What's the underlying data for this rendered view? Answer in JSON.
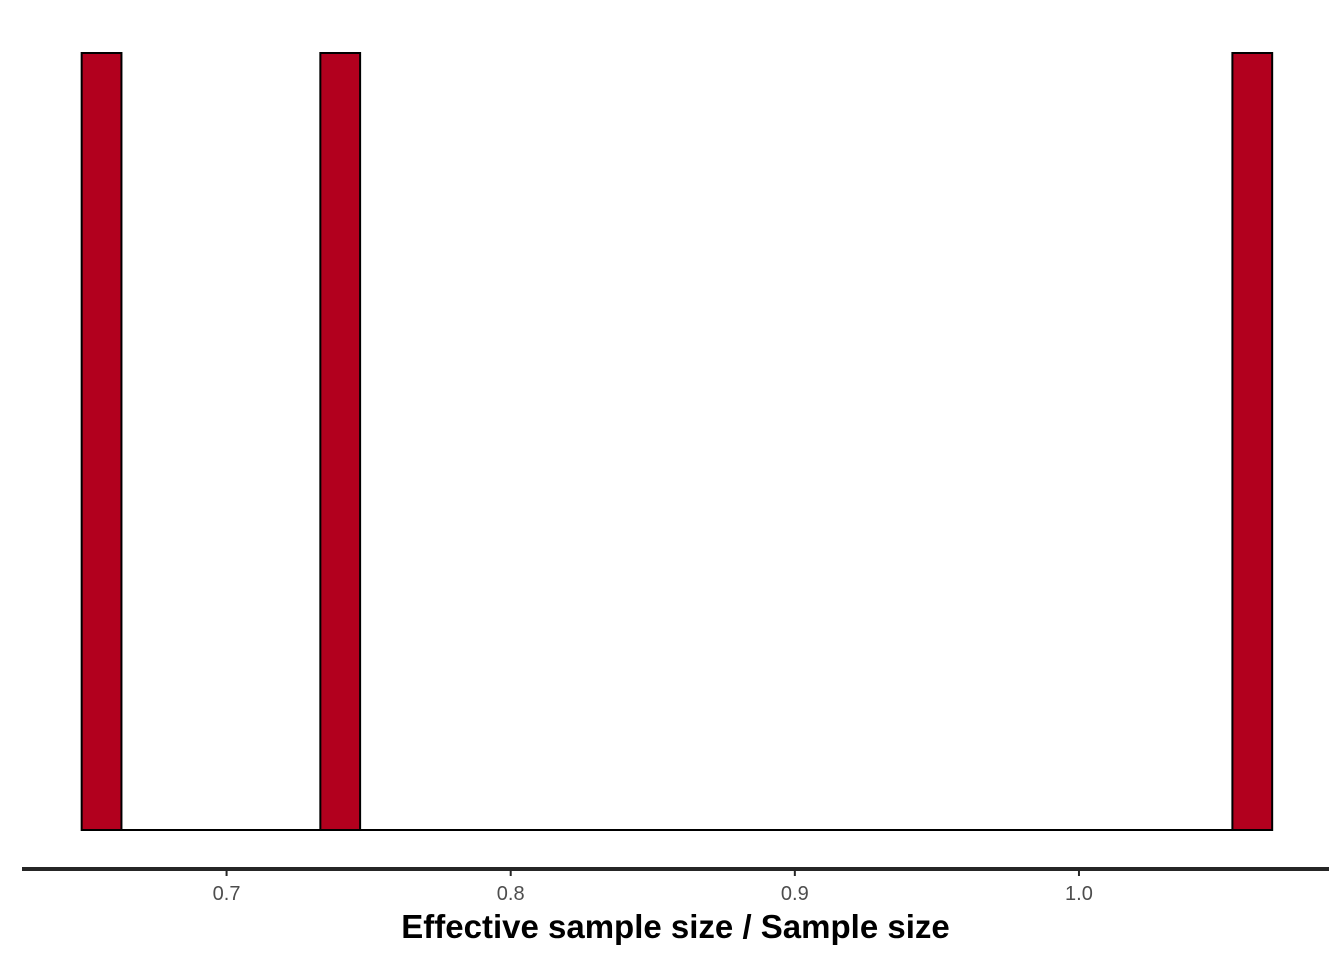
{
  "chart_data": {
    "type": "bar",
    "subtype": "histogram",
    "xlabel": "Effective sample size / Sample size",
    "ylabel": "",
    "title": "",
    "xlim": [
      0.628,
      1.088
    ],
    "x_ticks": [
      0.7,
      0.8,
      0.9,
      1.0
    ],
    "x_tick_labels": [
      "0.7",
      "0.8",
      "0.9",
      "1.0"
    ],
    "bin_width": 0.014,
    "bins": [
      {
        "x_start": 0.649,
        "x_end": 0.663,
        "count": 1
      },
      {
        "x_start": 0.733,
        "x_end": 0.747,
        "count": 1
      },
      {
        "x_start": 1.054,
        "x_end": 1.068,
        "count": 1
      }
    ],
    "baseline_span": [
      0.649,
      1.068
    ],
    "ylim": [
      0,
      1
    ],
    "y_axis_shown": false,
    "grid": false,
    "legend": "none",
    "colors": {
      "bar_fill": "#b2001e",
      "bar_stroke": "#000000",
      "axis_line": "#262626",
      "tick_label": "#4d4d4d",
      "axis_title": "#000000"
    }
  }
}
